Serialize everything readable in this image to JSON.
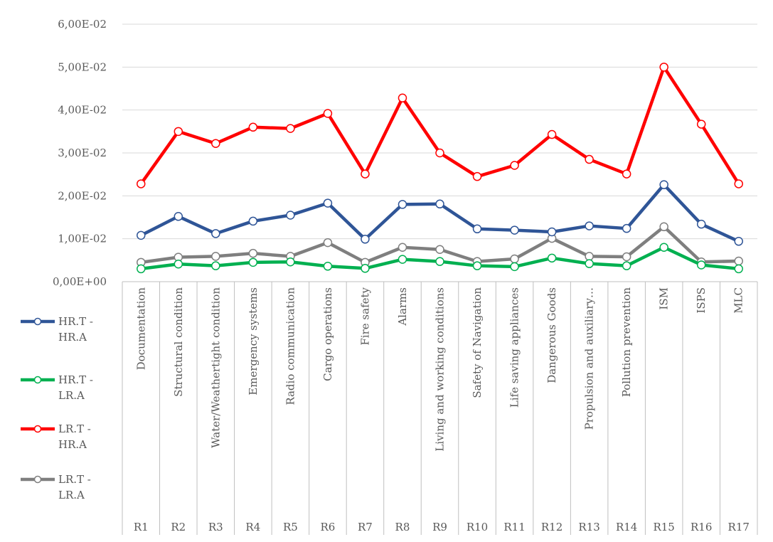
{
  "chart_data": {
    "type": "line",
    "title": "",
    "xlabel": "",
    "ylabel": "",
    "ylim": [
      0,
      0.06
    ],
    "yticks": [
      "0,00E+00",
      "1,00E-02",
      "2,00E-02",
      "3,00E-02",
      "4,00E-02",
      "5,00E-02",
      "6,00E-02"
    ],
    "grid": true,
    "legend_position": "left",
    "categories": [
      "Documentation",
      "Structural condition",
      "Water/Weathertight condition",
      "Emergency systems",
      "Radio communication",
      "Cargo operations",
      "Fire safety",
      "Alarms",
      "Living and working conditions",
      "Safety of Navigation",
      "Life saving appliances",
      "Dangerous Goods",
      "Propulsion and auxiliary…",
      "Pollution prevention",
      "ISM",
      "ISPS",
      "MLC"
    ],
    "codes": [
      "R1",
      "R2",
      "R3",
      "R4",
      "R5",
      "R6",
      "R7",
      "R8",
      "R9",
      "R10",
      "R11",
      "R12",
      "R13",
      "R14",
      "R15",
      "R16",
      "R17"
    ],
    "series": [
      {
        "name": "HR.T - HR.A",
        "legend_lines": [
          "HR.T -",
          "HR.A"
        ],
        "color": "#2f5597",
        "values": [
          0.0108,
          0.0152,
          0.0112,
          0.0141,
          0.0155,
          0.0183,
          0.0099,
          0.018,
          0.0181,
          0.0123,
          0.012,
          0.0116,
          0.013,
          0.0124,
          0.0226,
          0.0134,
          0.0094
        ]
      },
      {
        "name": "HR.T - LR.A",
        "legend_lines": [
          "HR.T -",
          "LR.A"
        ],
        "color": "#00b050",
        "values": [
          0.003,
          0.0041,
          0.0037,
          0.0045,
          0.0046,
          0.0036,
          0.0031,
          0.0052,
          0.0047,
          0.0037,
          0.0035,
          0.0055,
          0.0042,
          0.0037,
          0.008,
          0.0039,
          0.003
        ]
      },
      {
        "name": "LR.T - HR.A",
        "legend_lines": [
          "LR.T -",
          "HR.A"
        ],
        "color": "#ff0000",
        "values": [
          0.0228,
          0.035,
          0.0322,
          0.036,
          0.0357,
          0.0392,
          0.0251,
          0.0428,
          0.03,
          0.0245,
          0.0271,
          0.0343,
          0.0285,
          0.0251,
          0.05,
          0.0367,
          0.0228
        ]
      },
      {
        "name": "LR.T - LR.A",
        "legend_lines": [
          "LR.T -",
          "LR.A"
        ],
        "color": "#7f7f7f",
        "values": [
          0.0045,
          0.0057,
          0.0059,
          0.0066,
          0.0059,
          0.0091,
          0.0045,
          0.008,
          0.0075,
          0.0047,
          0.0053,
          0.0101,
          0.0059,
          0.0058,
          0.0128,
          0.0046,
          0.0048
        ]
      }
    ]
  }
}
